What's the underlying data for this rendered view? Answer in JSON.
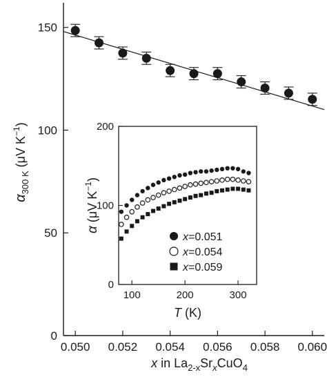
{
  "chart_data": [
    {
      "id": "main",
      "type": "scatter",
      "xlabel": {
        "var": "x",
        "text": " in La",
        "sub1": "2-x",
        "text2": "Sr",
        "sub2": "x",
        "text3": "CuO",
        "sub3": "4"
      },
      "ylabel": {
        "var": "α",
        "sub": "300 K",
        "unit": " (μV K",
        "sup": "−1",
        "close": ")"
      },
      "xlim": [
        0.0495,
        0.0605
      ],
      "ylim": [
        0,
        162
      ],
      "xticks": [
        0.05,
        0.052,
        0.054,
        0.056,
        0.058,
        0.06
      ],
      "xtick_labels": [
        "0.050",
        "0.052",
        "0.054",
        "0.056",
        "0.058",
        "0.060"
      ],
      "yticks": [
        0,
        50,
        100,
        150
      ],
      "ytick_labels": [
        "0",
        "50",
        "100",
        "150"
      ],
      "grid": false,
      "series": [
        {
          "marker": "filled-circle",
          "x": [
            0.05,
            0.051,
            0.052,
            0.053,
            0.054,
            0.055,
            0.056,
            0.057,
            0.058,
            0.059,
            0.06
          ],
          "y": [
            148.5,
            142.5,
            137.5,
            135.0,
            129.0,
            127.5,
            127.5,
            123.5,
            120.5,
            118.0,
            115.0
          ],
          "yerr": [
            3,
            3,
            3,
            3,
            3,
            3,
            3,
            3,
            3,
            3,
            3
          ]
        }
      ],
      "fit_line": {
        "x": [
          0.0495,
          0.0605
        ],
        "y": [
          148.0,
          110.0
        ]
      }
    },
    {
      "id": "inset",
      "type": "scatter",
      "xlabel": {
        "var": "T",
        "unit": " (K)"
      },
      "ylabel": {
        "var": "α",
        "unit": " (μV K",
        "sup": "−1",
        "close": ")"
      },
      "xlim": [
        75,
        335
      ],
      "ylim": [
        0,
        200
      ],
      "xticks": [
        100,
        200,
        300
      ],
      "xtick_labels": [
        "100",
        "200",
        "300"
      ],
      "yticks": [
        0,
        100,
        200
      ],
      "ytick_labels": [
        "0",
        "100",
        "200"
      ],
      "legend_position": "bottom-left",
      "series": [
        {
          "name": "x=0.051",
          "var": "x",
          "eq": "=0.051",
          "marker": "filled-circle",
          "x": [
            80,
            90,
            100,
            110,
            120,
            130,
            140,
            150,
            160,
            170,
            180,
            190,
            200,
            210,
            220,
            230,
            240,
            250,
            260,
            270,
            280,
            290,
            300,
            310,
            320
          ],
          "y": [
            92,
            100,
            107,
            113,
            118,
            122,
            126,
            129,
            132,
            134,
            136,
            138,
            139,
            141,
            142,
            143,
            143,
            144,
            145,
            146,
            147,
            147,
            146,
            143,
            141
          ]
        },
        {
          "name": "x=0.054",
          "var": "x",
          "eq": "=0.054",
          "marker": "open-circle",
          "x": [
            80,
            90,
            100,
            110,
            120,
            130,
            140,
            150,
            160,
            170,
            180,
            190,
            200,
            210,
            220,
            230,
            240,
            250,
            260,
            270,
            280,
            290,
            300,
            310,
            320
          ],
          "y": [
            76,
            85,
            92,
            98,
            103,
            107,
            110,
            113,
            116,
            118,
            120,
            122,
            124,
            126,
            127,
            128,
            129,
            130,
            131,
            132,
            133,
            133,
            132,
            131,
            130
          ]
        },
        {
          "name": "x=0.059",
          "var": "x",
          "eq": "=0.059",
          "marker": "filled-square",
          "x": [
            80,
            90,
            100,
            110,
            120,
            130,
            140,
            150,
            160,
            170,
            180,
            190,
            200,
            210,
            220,
            230,
            240,
            250,
            260,
            270,
            280,
            290,
            300,
            310,
            320
          ],
          "y": [
            58,
            67,
            74,
            80,
            85,
            89,
            93,
            96,
            99,
            102,
            104,
            106,
            108,
            110,
            112,
            113,
            115,
            116,
            118,
            119,
            120,
            121,
            121,
            120,
            119
          ]
        }
      ]
    }
  ]
}
